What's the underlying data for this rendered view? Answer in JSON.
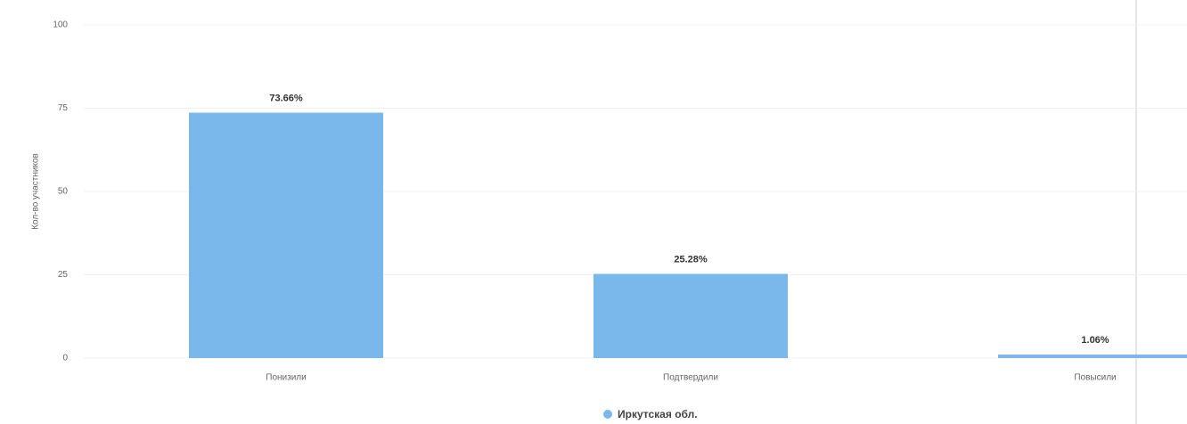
{
  "chart_data": {
    "type": "bar",
    "y_label": "Кол-во участников",
    "categories": [
      "Понизили",
      "Подтвердили",
      "Повысили"
    ],
    "series": [
      {
        "name": "Иркутская обл.",
        "color": "#7ab8ec",
        "values": [
          73.66,
          25.28,
          1.06
        ],
        "value_labels": [
          "73.66%",
          "25.28%",
          "1.06%"
        ]
      }
    ],
    "ylim": [
      0,
      100
    ],
    "yticks": [
      0,
      25,
      50,
      75,
      100
    ],
    "grid": true
  }
}
